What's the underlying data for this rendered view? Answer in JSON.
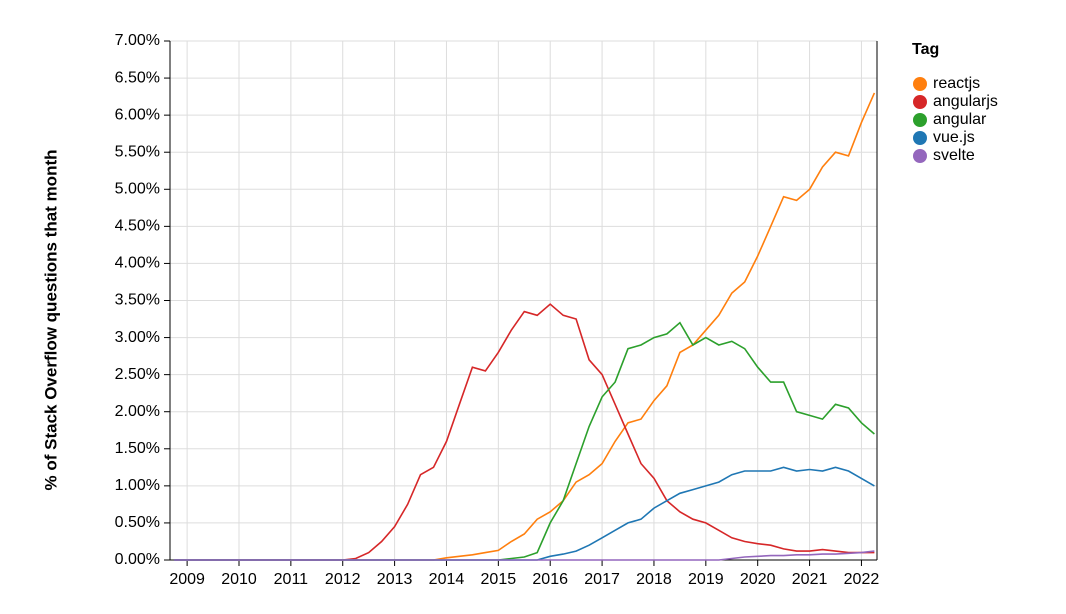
{
  "chart_data": {
    "type": "line",
    "y_label": "% of Stack Overflow questions that month",
    "legend_title": "Tag",
    "x": [
      2008.75,
      2009,
      2009.25,
      2009.5,
      2009.75,
      2010,
      2010.25,
      2010.5,
      2010.75,
      2011,
      2011.25,
      2011.5,
      2011.75,
      2012,
      2012.25,
      2012.5,
      2012.75,
      2013,
      2013.25,
      2013.5,
      2013.75,
      2014,
      2014.25,
      2014.5,
      2014.75,
      2015,
      2015.25,
      2015.5,
      2015.75,
      2016,
      2016.25,
      2016.5,
      2016.75,
      2017,
      2017.25,
      2017.5,
      2017.75,
      2018,
      2018.25,
      2018.5,
      2018.75,
      2019,
      2019.25,
      2019.5,
      2019.75,
      2020,
      2020.25,
      2020.5,
      2020.75,
      2021,
      2021.25,
      2021.5,
      2021.75,
      2022,
      2022.25
    ],
    "series": [
      {
        "name": "reactjs",
        "color": "#ff7f0e",
        "values": [
          0,
          0,
          0,
          0,
          0,
          0,
          0,
          0,
          0,
          0,
          0,
          0,
          0,
          0,
          0,
          0,
          0,
          0,
          0,
          0,
          0,
          0.03,
          0.05,
          0.07,
          0.1,
          0.13,
          0.25,
          0.35,
          0.55,
          0.65,
          0.8,
          1.05,
          1.15,
          1.3,
          1.6,
          1.85,
          1.9,
          2.15,
          2.35,
          2.8,
          2.9,
          3.1,
          3.3,
          3.6,
          3.75,
          4.1,
          4.5,
          4.9,
          4.85,
          5.0,
          5.3,
          5.5,
          5.45,
          5.9,
          6.3
        ]
      },
      {
        "name": "angularjs",
        "color": "#d62728",
        "values": [
          0,
          0,
          0,
          0,
          0,
          0,
          0,
          0,
          0,
          0,
          0,
          0,
          0,
          0,
          0.02,
          0.1,
          0.25,
          0.45,
          0.75,
          1.15,
          1.25,
          1.6,
          2.1,
          2.6,
          2.55,
          2.8,
          3.1,
          3.35,
          3.3,
          3.45,
          3.3,
          3.25,
          2.7,
          2.5,
          2.1,
          1.7,
          1.3,
          1.1,
          0.8,
          0.65,
          0.55,
          0.5,
          0.4,
          0.3,
          0.25,
          0.22,
          0.2,
          0.15,
          0.12,
          0.12,
          0.14,
          0.12,
          0.1,
          0.1,
          0.1
        ]
      },
      {
        "name": "angular",
        "color": "#2ca02c",
        "values": [
          0,
          0,
          0,
          0,
          0,
          0,
          0,
          0,
          0,
          0,
          0,
          0,
          0,
          0,
          0,
          0,
          0,
          0,
          0,
          0,
          0,
          0,
          0,
          0,
          0,
          0,
          0.02,
          0.04,
          0.1,
          0.5,
          0.8,
          1.3,
          1.8,
          2.2,
          2.4,
          2.85,
          2.9,
          3.0,
          3.05,
          3.2,
          2.9,
          3.0,
          2.9,
          2.95,
          2.85,
          2.6,
          2.4,
          2.4,
          2.0,
          1.95,
          1.9,
          2.1,
          2.05,
          1.85,
          1.7
        ]
      },
      {
        "name": "vue.js",
        "color": "#1f77b4",
        "values": [
          0,
          0,
          0,
          0,
          0,
          0,
          0,
          0,
          0,
          0,
          0,
          0,
          0,
          0,
          0,
          0,
          0,
          0,
          0,
          0,
          0,
          0,
          0,
          0,
          0,
          0,
          0,
          0,
          0,
          0.05,
          0.08,
          0.12,
          0.2,
          0.3,
          0.4,
          0.5,
          0.55,
          0.7,
          0.8,
          0.9,
          0.95,
          1.0,
          1.05,
          1.15,
          1.2,
          1.2,
          1.2,
          1.25,
          1.2,
          1.22,
          1.2,
          1.25,
          1.2,
          1.1,
          1.0
        ]
      },
      {
        "name": "svelte",
        "color": "#9467bd",
        "values": [
          0,
          0,
          0,
          0,
          0,
          0,
          0,
          0,
          0,
          0,
          0,
          0,
          0,
          0,
          0,
          0,
          0,
          0,
          0,
          0,
          0,
          0,
          0,
          0,
          0,
          0,
          0,
          0,
          0,
          0,
          0,
          0,
          0,
          0,
          0,
          0,
          0,
          0,
          0,
          0,
          0,
          0,
          0,
          0.02,
          0.04,
          0.05,
          0.06,
          0.06,
          0.07,
          0.07,
          0.08,
          0.08,
          0.09,
          0.1,
          0.12
        ]
      }
    ],
    "xlim": [
      2008.67,
      2022.3
    ],
    "xticks": [
      2009,
      2010,
      2011,
      2012,
      2013,
      2014,
      2015,
      2016,
      2017,
      2018,
      2019,
      2020,
      2021,
      2022
    ],
    "ylim": [
      0,
      7
    ],
    "yticks": [
      {
        "value": 0,
        "label": "0.00%"
      },
      {
        "value": 0.5,
        "label": "0.50%"
      },
      {
        "value": 1,
        "label": "1.00%"
      },
      {
        "value": 1.5,
        "label": "1.50%"
      },
      {
        "value": 2,
        "label": "2.00%"
      },
      {
        "value": 2.5,
        "label": "2.50%"
      },
      {
        "value": 3,
        "label": "3.00%"
      },
      {
        "value": 3.5,
        "label": "3.50%"
      },
      {
        "value": 4,
        "label": "4.00%"
      },
      {
        "value": 4.5,
        "label": "4.50%"
      },
      {
        "value": 5,
        "label": "5.00%"
      },
      {
        "value": 5.5,
        "label": "5.50%"
      },
      {
        "value": 6,
        "label": "6.00%"
      },
      {
        "value": 6.5,
        "label": "6.50%"
      },
      {
        "value": 7,
        "label": "7.00%"
      }
    ],
    "grid": true
  }
}
